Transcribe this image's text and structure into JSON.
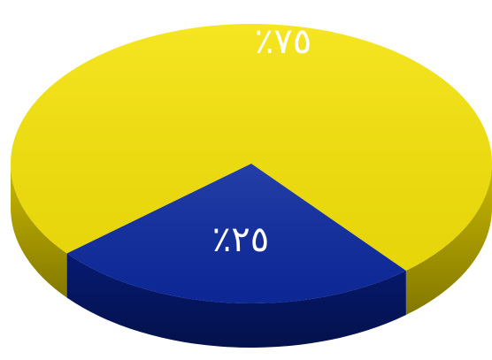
{
  "chart_data": {
    "type": "pie",
    "style": "3d-tilted",
    "slices": [
      {
        "label": "٧٥٪",
        "value": 75,
        "color": "#f5e30a",
        "side_color": "#c9b800",
        "label_color": "#1a1a1a"
      },
      {
        "label": "٢٥٪",
        "value": 25,
        "color": "#0d2a9e",
        "side_color": "#061a72",
        "label_color": "#ffffff"
      }
    ],
    "legend": "none",
    "title": ""
  }
}
